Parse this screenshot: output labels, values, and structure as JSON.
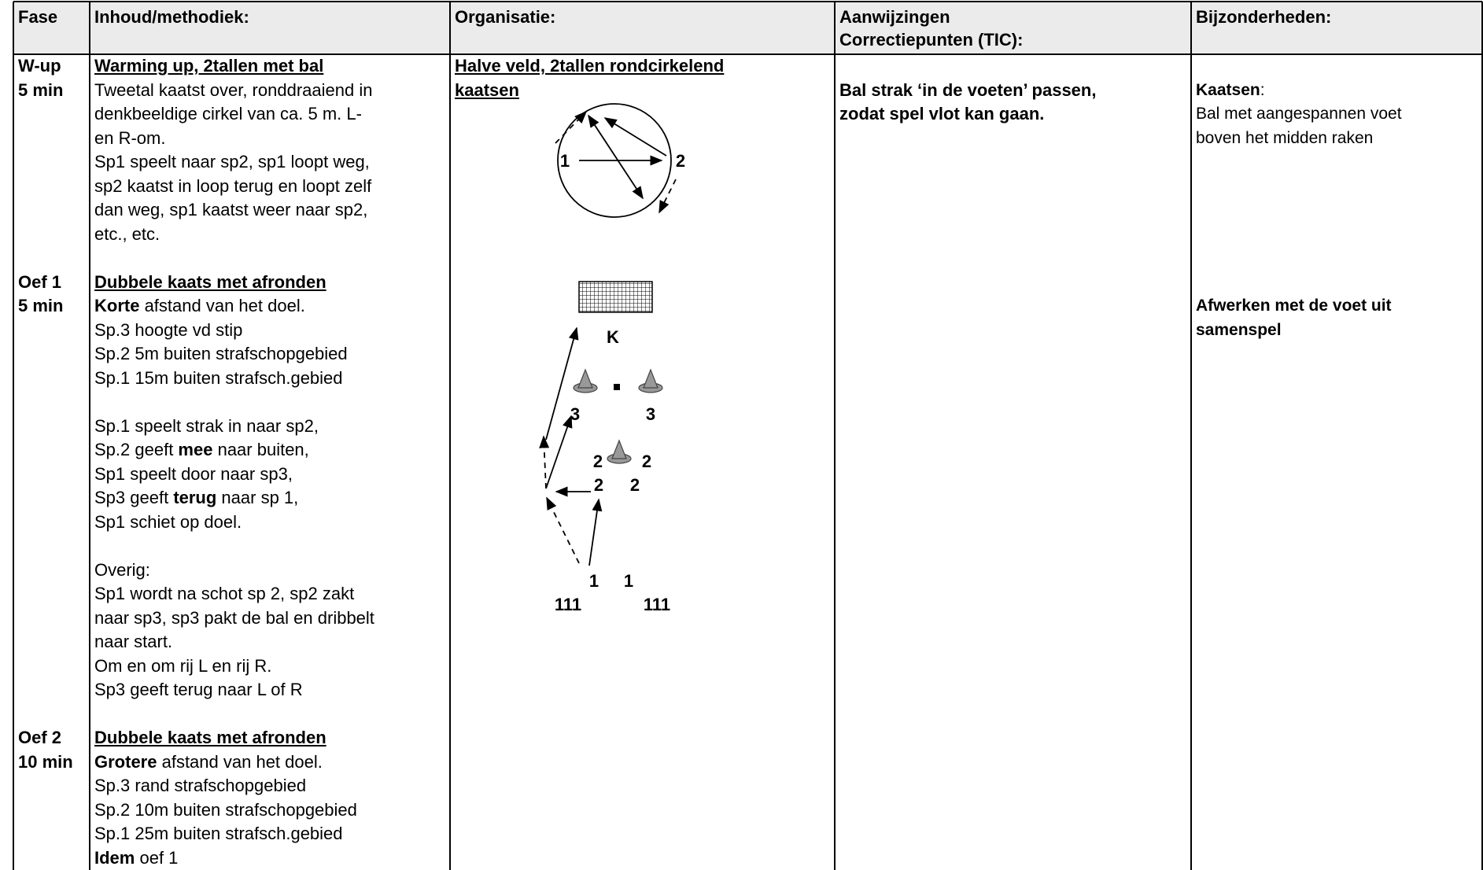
{
  "header": [
    {
      "lines": [
        "Fase"
      ]
    },
    {
      "lines": [
        "Inhoud/methodiek:"
      ]
    },
    {
      "lines": [
        "Organisatie:"
      ]
    },
    {
      "lines": [
        "Aanwijzingen",
        "Correctiepunten (TIC):"
      ]
    },
    {
      "lines": [
        "Bijzonderheden:"
      ]
    }
  ],
  "sections": [
    {
      "fase": [
        "W-up",
        "5 min"
      ],
      "inhoud": [
        [
          [
            {
              "text": "Warming up, 2tallen met bal",
              "bold": true,
              "underline": true
            }
          ],
          "Tweetal kaatst over, ronddraaiend in",
          "denkbeeldige cirkel van ca. 5 m. L-",
          "en R-om.",
          "Sp1 speelt naar sp2, sp1 loopt weg,",
          "sp2 kaatst in loop terug en loopt zelf",
          "dan weg, sp1 kaatst weer naar sp2,",
          "etc., etc."
        ]
      ],
      "organisatie": [
        [
          [
            {
              "text": "Halve veld, 2tallen rondcirkelend",
              "bold": true,
              "underline": true
            }
          ],
          [
            {
              "text": "kaatsen",
              "bold": true,
              "underline": true
            }
          ]
        ]
      ],
      "aanwijzingen": [
        [
          [
            {
              "text": "Bal strak ‘in de voeten’ passen,",
              "bold": true
            }
          ],
          [
            {
              "text": "zodat spel vlot kan gaan.",
              "bold": true
            }
          ]
        ]
      ],
      "bijzonderheden": [
        [
          [
            {
              "text": "Kaatsen",
              "bold": true
            },
            ":"
          ],
          "Bal met aangespannen voet",
          "boven het midden raken"
        ]
      ]
    },
    {
      "fase": [
        "Oef 1",
        "5 min"
      ],
      "inhoud": [
        [
          [
            {
              "text": "Dubbele kaats met afronden",
              "bold": true,
              "underline": true
            }
          ],
          [
            {
              "text": "Korte",
              "bold": true
            },
            " afstand van het doel."
          ],
          "Sp.3 hoogte vd stip",
          "Sp.2 5m buiten strafschopgebied",
          "Sp.1 15m buiten strafsch.gebied"
        ],
        [
          "Sp.1 speelt strak in naar sp2,",
          [
            "Sp.2 geeft ",
            {
              "text": "mee",
              "bold": true
            },
            " naar buiten,"
          ],
          "Sp1 speelt door naar sp3,",
          [
            "Sp3 geeft ",
            {
              "text": "terug",
              "bold": true
            },
            " naar sp 1,"
          ],
          "Sp1 schiet op doel."
        ],
        [
          "Overig:",
          "Sp1 wordt na schot sp 2, sp2 zakt",
          "naar sp3, sp3 pakt de bal en dribbelt",
          "naar start.",
          "Om en om rij L en rij R.",
          "Sp3 geeft terug naar L of R"
        ]
      ],
      "organisatie": [],
      "aanwijzingen": [],
      "bijzonderheden": [
        [
          [
            {
              "text": "Afwerken met de voet uit",
              "bold": true
            }
          ],
          [
            {
              "text": "samenspel",
              "bold": true
            }
          ]
        ]
      ]
    },
    {
      "fase": [
        "Oef 2",
        "10 min"
      ],
      "inhoud": [
        [
          [
            {
              "text": "Dubbele kaats met afronden",
              "bold": true,
              "underline": true
            }
          ],
          [
            {
              "text": "Grotere",
              "bold": true
            },
            " afstand van het doel."
          ],
          "Sp.3 rand strafschopgebied",
          "Sp.2 10m buiten strafschopgebied",
          "Sp.1 25m buiten strafsch.gebied",
          [
            {
              "text": "Idem",
              "bold": true
            },
            " oef 1"
          ]
        ]
      ],
      "organisatie": [],
      "aanwijzingen": [],
      "bijzonderheden": []
    }
  ],
  "diagrams": {
    "circle_labels": [
      "1",
      "2"
    ],
    "drill_labels": [
      "K",
      "3",
      "3",
      "2",
      "2",
      "2",
      "2",
      "1",
      "1",
      "111",
      "111"
    ]
  }
}
